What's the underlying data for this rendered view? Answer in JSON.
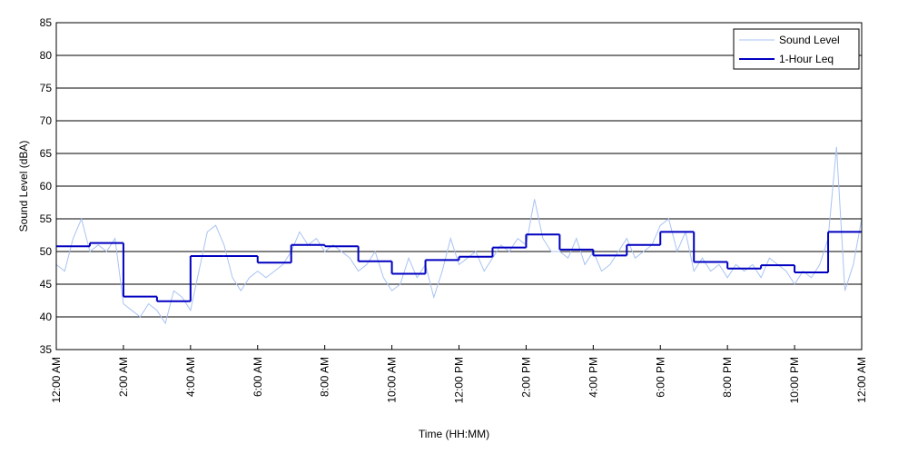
{
  "chart_data": {
    "type": "line",
    "xlabel": "Time (HH:MM)",
    "ylabel": "Sound Level (dBA)",
    "xlim": [
      0,
      24
    ],
    "ylim": [
      35,
      85
    ],
    "xticks": [
      {
        "value": 0,
        "label": "12:00 AM"
      },
      {
        "value": 2,
        "label": "2:00 AM"
      },
      {
        "value": 4,
        "label": "4:00 AM"
      },
      {
        "value": 6,
        "label": "6:00 AM"
      },
      {
        "value": 8,
        "label": "8:00 AM"
      },
      {
        "value": 10,
        "label": "10:00 AM"
      },
      {
        "value": 12,
        "label": "12:00 PM"
      },
      {
        "value": 14,
        "label": "2:00 PM"
      },
      {
        "value": 16,
        "label": "4:00 PM"
      },
      {
        "value": 18,
        "label": "6:00 PM"
      },
      {
        "value": 20,
        "label": "8:00 PM"
      },
      {
        "value": 22,
        "label": "10:00 PM"
      },
      {
        "value": 24,
        "label": "12:00 AM"
      }
    ],
    "yticks": [
      35,
      40,
      45,
      50,
      55,
      60,
      65,
      70,
      75,
      80,
      85
    ],
    "grid": true,
    "legend": "upper right",
    "series": [
      {
        "name": "Sound Level",
        "color": "#a9c3f2",
        "step": false,
        "x": [
          0,
          0.25,
          0.5,
          0.75,
          1,
          1.25,
          1.5,
          1.75,
          2,
          2.25,
          2.5,
          2.75,
          3,
          3.25,
          3.5,
          3.75,
          4,
          4.25,
          4.5,
          4.75,
          5,
          5.25,
          5.5,
          5.75,
          6,
          6.25,
          6.5,
          6.75,
          7,
          7.25,
          7.5,
          7.75,
          8,
          8.25,
          8.5,
          8.75,
          9,
          9.25,
          9.5,
          9.75,
          10,
          10.25,
          10.5,
          10.75,
          11,
          11.25,
          11.5,
          11.75,
          12,
          12.25,
          12.5,
          12.75,
          13,
          13.25,
          13.5,
          13.75,
          14,
          14.25,
          14.5,
          14.75,
          15,
          15.25,
          15.5,
          15.75,
          16,
          16.25,
          16.5,
          16.75,
          17,
          17.25,
          17.5,
          17.75,
          18,
          18.25,
          18.5,
          18.75,
          19,
          19.25,
          19.5,
          19.75,
          20,
          20.25,
          20.5,
          20.75,
          21,
          21.25,
          21.5,
          21.75,
          22,
          22.25,
          22.5,
          22.75,
          23,
          23.25,
          23.5,
          23.75,
          24
        ],
        "values": [
          48,
          47,
          52,
          55,
          50,
          51,
          50,
          52,
          42,
          41,
          40,
          42,
          41,
          39,
          44,
          43,
          41,
          47,
          53,
          54,
          51,
          46,
          44,
          46,
          47,
          46,
          47,
          48,
          50,
          53,
          51,
          52,
          50,
          51,
          50,
          49,
          47,
          48,
          50,
          46,
          44,
          45,
          49,
          46,
          48,
          43,
          47,
          52,
          48,
          49,
          50,
          47,
          49,
          51,
          50,
          52,
          51,
          58,
          52,
          50,
          50,
          49,
          52,
          48,
          50,
          47,
          48,
          50,
          52,
          49,
          50,
          51,
          54,
          55,
          50,
          53,
          47,
          49,
          47,
          48,
          46,
          48,
          47,
          48,
          46,
          49,
          48,
          47,
          45,
          47,
          46,
          48,
          52,
          66,
          44,
          48,
          55
        ]
      },
      {
        "name": "1-Hour Leq",
        "color": "#0000c0",
        "step": true,
        "x": [
          0,
          1,
          2,
          3,
          4,
          5,
          6,
          7,
          8,
          9,
          10,
          11,
          12,
          13,
          14,
          15,
          16,
          17,
          18,
          19,
          20,
          21,
          22,
          23
        ],
        "values": [
          50.8,
          51.3,
          43.1,
          42.4,
          49.3,
          49.3,
          48.3,
          51.0,
          50.8,
          48.5,
          46.6,
          48.7,
          49.2,
          50.6,
          52.6,
          50.3,
          49.4,
          51.0,
          53.0,
          48.4,
          47.4,
          47.9,
          46.8,
          53.0
        ]
      }
    ]
  }
}
